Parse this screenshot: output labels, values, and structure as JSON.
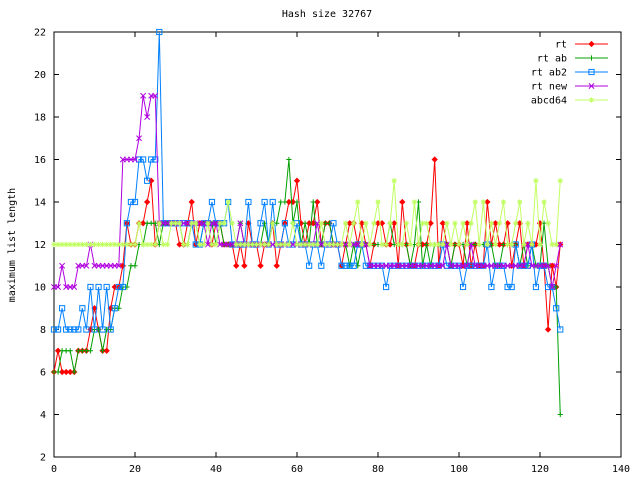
{
  "chart_data": {
    "type": "line",
    "title": "Hash size 32767",
    "xlabel": "",
    "ylabel": "maximum list length",
    "xlim": [
      0,
      140
    ],
    "ylim": [
      2,
      22
    ],
    "xticks": [
      0,
      20,
      40,
      60,
      80,
      100,
      120,
      140
    ],
    "yticks": [
      2,
      4,
      6,
      8,
      10,
      12,
      14,
      16,
      18,
      20,
      22
    ],
    "grid": false,
    "legend_position": "top-right",
    "series": [
      {
        "name": "rt",
        "color": "#ff0000",
        "marker": "diamond",
        "values": [
          6,
          7,
          6,
          6,
          6,
          6,
          7,
          7,
          7,
          8,
          9,
          8,
          7,
          7,
          9,
          10,
          10,
          11,
          13,
          12,
          12,
          13,
          13,
          14,
          15,
          12,
          13,
          13,
          13,
          13,
          13,
          12,
          12,
          13,
          14,
          12,
          13,
          13,
          13,
          12,
          13,
          13,
          12,
          12,
          12,
          11,
          12,
          11,
          13,
          12,
          12,
          11,
          12,
          12,
          13,
          11,
          12,
          13,
          14,
          14,
          15,
          13,
          12,
          13,
          13,
          14,
          12,
          13,
          13,
          12,
          12,
          11,
          12,
          13,
          13,
          12,
          13,
          12,
          11,
          12,
          13,
          13,
          12,
          12,
          13,
          11,
          14,
          12,
          11,
          11,
          12,
          12,
          12,
          13,
          16,
          11,
          13,
          12,
          11,
          12,
          12,
          11,
          13,
          11,
          12,
          11,
          11,
          14,
          12,
          13,
          12,
          12,
          13,
          11,
          12,
          13,
          11,
          12,
          12,
          12,
          13,
          11,
          8,
          11,
          10,
          12
        ]
      },
      {
        "name": "rt ab",
        "color": "#00a000",
        "marker": "plus",
        "values": [
          6,
          6,
          7,
          7,
          7,
          6,
          7,
          7,
          7,
          7,
          8,
          8,
          7,
          8,
          8,
          9,
          9,
          10,
          10,
          11,
          11,
          12,
          12,
          13,
          13,
          13,
          12,
          13,
          13,
          13,
          13,
          13,
          12,
          12,
          13,
          13,
          12,
          13,
          13,
          13,
          12,
          13,
          12,
          12,
          12,
          12,
          13,
          12,
          12,
          12,
          12,
          12,
          13,
          12,
          13,
          13,
          14,
          14,
          16,
          13,
          14,
          12,
          13,
          12,
          14,
          12,
          12,
          13,
          13,
          12,
          12,
          12,
          12,
          11,
          12,
          11,
          12,
          12,
          12,
          12,
          12,
          12,
          12,
          13,
          12,
          12,
          12,
          12,
          11,
          12,
          14,
          11,
          12,
          11,
          12,
          12,
          12,
          12,
          11,
          12,
          12,
          12,
          11,
          12,
          12,
          12,
          12,
          12,
          12,
          11,
          11,
          12,
          12,
          12,
          12,
          11,
          12,
          11,
          12,
          11,
          11,
          13,
          11,
          10,
          10,
          4
        ]
      },
      {
        "name": "rt ab2",
        "color": "#0080ff",
        "marker": "square",
        "values": [
          8,
          8,
          9,
          8,
          8,
          8,
          8,
          9,
          8,
          10,
          8,
          10,
          8,
          10,
          8,
          9,
          10,
          10,
          13,
          14,
          14,
          16,
          16,
          15,
          16,
          16,
          22,
          13,
          13,
          13,
          13,
          13,
          13,
          13,
          13,
          12,
          12,
          13,
          13,
          14,
          13,
          13,
          13,
          14,
          12,
          12,
          12,
          12,
          14,
          12,
          12,
          13,
          14,
          12,
          14,
          12,
          12,
          13,
          12,
          12,
          13,
          12,
          12,
          11,
          12,
          12,
          11,
          12,
          12,
          13,
          12,
          11,
          11,
          11,
          11,
          12,
          12,
          11,
          11,
          11,
          11,
          11,
          10,
          11,
          11,
          11,
          11,
          11,
          11,
          11,
          11,
          11,
          11,
          11,
          11,
          11,
          12,
          11,
          11,
          11,
          11,
          10,
          11,
          11,
          11,
          11,
          11,
          12,
          10,
          11,
          11,
          11,
          10,
          10,
          12,
          11,
          11,
          11,
          12,
          10,
          11,
          11,
          10,
          10,
          9,
          8
        ]
      },
      {
        "name": "rt new",
        "color": "#b000e0",
        "marker": "x",
        "values": [
          10,
          10,
          11,
          10,
          10,
          10,
          11,
          11,
          11,
          12,
          11,
          11,
          11,
          11,
          11,
          11,
          11,
          16,
          16,
          16,
          16,
          17,
          19,
          18,
          19,
          19,
          13,
          13,
          13,
          13,
          13,
          13,
          13,
          13,
          13,
          13,
          13,
          13,
          12,
          13,
          13,
          12,
          12,
          12,
          12,
          12,
          13,
          12,
          12,
          12,
          12,
          12,
          12,
          12,
          12,
          12,
          12,
          12,
          12,
          12,
          12,
          12,
          12,
          12,
          12,
          13,
          12,
          12,
          12,
          12,
          12,
          12,
          12,
          12,
          12,
          12,
          12,
          12,
          11,
          11,
          11,
          11,
          11,
          11,
          11,
          11,
          11,
          11,
          11,
          11,
          11,
          11,
          11,
          11,
          11,
          11,
          11,
          12,
          11,
          11,
          11,
          11,
          11,
          12,
          11,
          11,
          11,
          11,
          11,
          11,
          11,
          11,
          11,
          11,
          11,
          11,
          11,
          12,
          11,
          11,
          11,
          11,
          11,
          10,
          11,
          12
        ]
      },
      {
        "name": "abcd64",
        "color": "#c0ff60",
        "marker": "star",
        "values": [
          12,
          12,
          12,
          12,
          12,
          12,
          12,
          12,
          12,
          12,
          12,
          12,
          12,
          12,
          12,
          12,
          12,
          12,
          12,
          12,
          12,
          13,
          12,
          12,
          12,
          12,
          13,
          12,
          12,
          13,
          13,
          13,
          12,
          12,
          13,
          13,
          12,
          12,
          13,
          12,
          12,
          13,
          13,
          14,
          13,
          12,
          12,
          12,
          12,
          12,
          12,
          12,
          12,
          12,
          13,
          12,
          12,
          12,
          12,
          13,
          12,
          12,
          12,
          12,
          12,
          12,
          13,
          12,
          12,
          12,
          12,
          12,
          13,
          12,
          13,
          14,
          12,
          13,
          12,
          13,
          14,
          12,
          12,
          13,
          15,
          12,
          12,
          13,
          12,
          14,
          12,
          13,
          13,
          12,
          12,
          12,
          12,
          13,
          12,
          13,
          12,
          13,
          12,
          13,
          14,
          12,
          14,
          12,
          13,
          12,
          13,
          14,
          12,
          12,
          13,
          14,
          12,
          13,
          12,
          15,
          12,
          14,
          13,
          12,
          12,
          15
        ]
      }
    ]
  }
}
